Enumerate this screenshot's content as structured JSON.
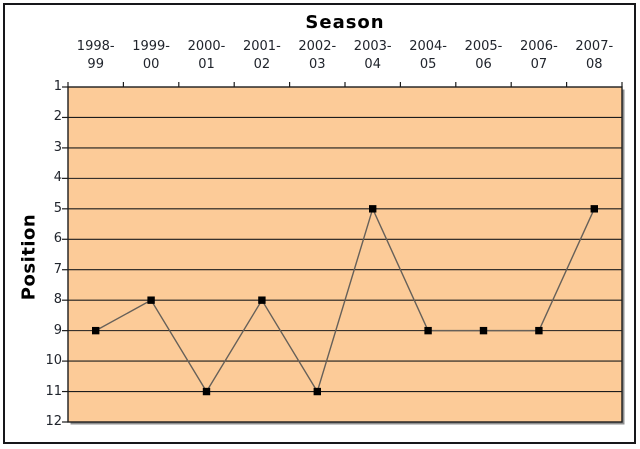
{
  "window": {
    "background": "#ffffff",
    "frame_border_color": "#17171a"
  },
  "chart": {
    "title": "Season",
    "x_axis": {
      "position": "top",
      "tick_labels": [
        {
          "line1": "1998-",
          "line2": "99"
        },
        {
          "line1": "1999-",
          "line2": "00"
        },
        {
          "line1": "2000-",
          "line2": "01"
        },
        {
          "line1": "2001-",
          "line2": "02"
        },
        {
          "line1": "2002-",
          "line2": "03"
        },
        {
          "line1": "2003-",
          "line2": "04"
        },
        {
          "line1": "2004-",
          "line2": "05"
        },
        {
          "line1": "2005-",
          "line2": "06"
        },
        {
          "line1": "2006-",
          "line2": "07"
        },
        {
          "line1": "2007-",
          "line2": "08"
        }
      ]
    },
    "y_axis": {
      "title": "Position",
      "tick_labels": [
        "1",
        "2",
        "3",
        "4",
        "5",
        "6",
        "7",
        "8",
        "9",
        "10",
        "11",
        "12"
      ]
    }
  },
  "chart_data": {
    "type": "line",
    "title": "Season",
    "xlabel": "Season",
    "ylabel": "Position",
    "categories": [
      "1998-99",
      "1999-00",
      "2000-01",
      "2001-02",
      "2002-03",
      "2003-04",
      "2004-05",
      "2005-06",
      "2006-07",
      "2007-08"
    ],
    "values": [
      9,
      8,
      11,
      8,
      11,
      5,
      9,
      9,
      9,
      5
    ],
    "ylim": [
      1,
      12
    ],
    "y_axis_reversed": true,
    "x_axis_position": "top",
    "grid": "horizontal",
    "legend": "none",
    "marker": "filled-square",
    "colors": {
      "plot_background": "#fccb98",
      "gridline": "#1c1c1c",
      "plot_border": "#1c1c1c",
      "series_line": "#666059",
      "marker": "#000000",
      "tick_text": "#20242c",
      "title_text": "#000000",
      "plot_shadow": "#8f8f8f"
    }
  }
}
